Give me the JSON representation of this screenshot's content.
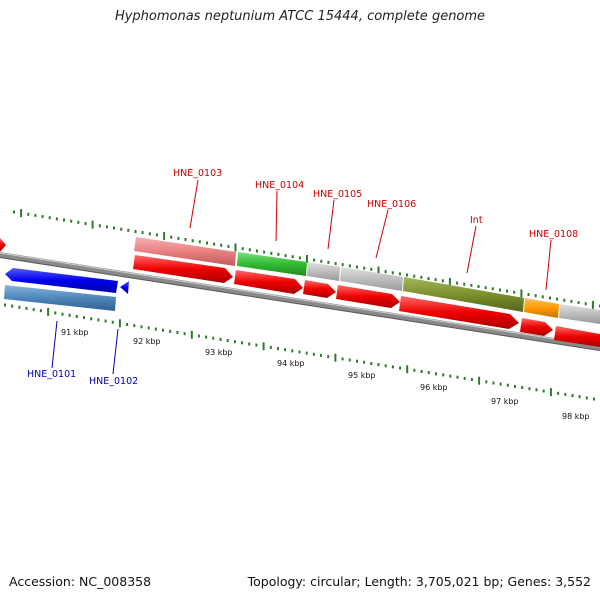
{
  "title": "Hyphomonas neptunium ATCC 15444, complete genome",
  "footer": {
    "accession": "Accession: NC_008358",
    "topology": "Topology: circular; Length: 3,705,021 bp; Genes: 3,552"
  },
  "colors": {
    "forward_label": "#cc0000",
    "reverse_label": "#0000aa",
    "tick": "#2d7a2d",
    "backbone": "#7a7a7a"
  },
  "gene_labels": {
    "forward": [
      "HNE_0103",
      "HNE_0104",
      "HNE_0105",
      "HNE_0106",
      "Int",
      "HNE_0108"
    ],
    "reverse": [
      "HNE_0101",
      "HNE_0102"
    ]
  },
  "scale_labels": [
    "91 kbp",
    "92 kbp",
    "93 kbp",
    "94 kbp",
    "95 kbp",
    "96 kbp",
    "97 kbp",
    "98 kbp"
  ]
}
